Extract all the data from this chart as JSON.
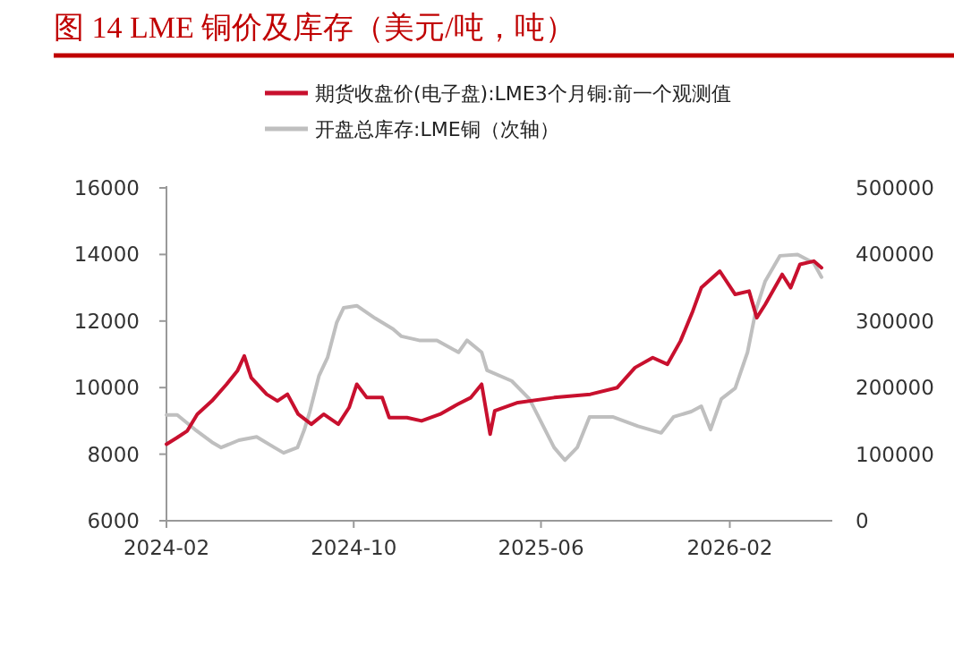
{
  "chart_data": {
    "type": "line",
    "title": "图 14  LME 铜价及库存（美元/吨，吨）",
    "legend": "top",
    "grid": false,
    "marker": "none",
    "line_style": "solid",
    "xlim": [
      "2024-02-01",
      "2026-06-14"
    ],
    "xticks": [
      "2024-02",
      "2024-10",
      "2025-06",
      "2026-02"
    ],
    "ylim": [
      6000,
      16000
    ],
    "yticks": [
      6000,
      8000,
      10000,
      12000,
      14000,
      16000
    ],
    "y2lim": [
      0,
      500000
    ],
    "y2ticks": [
      0,
      100000,
      200000,
      300000,
      400000,
      500000
    ],
    "series": [
      {
        "name": "期货收盘价(电子盘):LME3个月铜:前一个观测值",
        "color": "#c8102e",
        "x": [
          "2024-02-01",
          "2024-02-15",
          "2024-02-28",
          "2024-03-12",
          "2024-03-31",
          "2024-04-19",
          "2024-05-03",
          "2024-05-12",
          "2024-05-21",
          "2024-06-10",
          "2024-06-24",
          "2024-07-07",
          "2024-07-21",
          "2024-08-07",
          "2024-08-23",
          "2024-09-11",
          "2024-09-25",
          "2024-10-05",
          "2024-10-18",
          "2024-11-07",
          "2024-11-16",
          "2024-12-09",
          "2024-12-28",
          "2025-01-21",
          "2025-02-13",
          "2025-03-02",
          "2025-03-16",
          "2025-03-27",
          "2025-04-02",
          "2025-05-02",
          "2025-06-18",
          "2025-08-04",
          "2025-09-08",
          "2025-10-01",
          "2025-10-24",
          "2025-11-12",
          "2025-11-29",
          "2025-12-15",
          "2025-12-26",
          "2026-01-19",
          "2026-02-08",
          "2026-02-26",
          "2026-03-08",
          "2026-03-19",
          "2026-04-10",
          "2026-04-21",
          "2026-05-03",
          "2026-05-21",
          "2026-05-31"
        ],
        "values": [
          8300,
          8500,
          8700,
          9200,
          9600,
          10100,
          10500,
          10950,
          10300,
          9800,
          9600,
          9800,
          9200,
          8900,
          9200,
          8900,
          9400,
          10100,
          9700,
          9700,
          9100,
          9100,
          9000,
          9200,
          9500,
          9700,
          10100,
          8600,
          9300,
          9550,
          9700,
          9800,
          10000,
          10600,
          10900,
          10700,
          11400,
          12300,
          13000,
          13500,
          12800,
          12900,
          12100,
          12500,
          13400,
          13000,
          13700,
          13800,
          13600
        ]
      },
      {
        "name": "开盘总库存:LME铜（次轴）",
        "color": "#bfbfbf",
        "axis": "y2",
        "x": [
          "2024-02-01",
          "2024-02-15",
          "2024-03-09",
          "2024-03-31",
          "2024-04-12",
          "2024-05-05",
          "2024-05-28",
          "2024-06-20",
          "2024-07-02",
          "2024-07-20",
          "2024-07-29",
          "2024-08-05",
          "2024-08-17",
          "2024-08-28",
          "2024-09-09",
          "2024-09-18",
          "2024-10-05",
          "2024-10-29",
          "2024-11-21",
          "2024-12-02",
          "2024-12-25",
          "2025-01-17",
          "2025-02-14",
          "2025-02-25",
          "2025-03-16",
          "2025-03-23",
          "2025-04-24",
          "2025-05-17",
          "2025-06-18",
          "2025-07-02",
          "2025-07-18",
          "2025-08-03",
          "2025-09-02",
          "2025-10-05",
          "2025-11-04",
          "2025-11-20",
          "2025-12-13",
          "2025-12-26",
          "2026-01-07",
          "2026-01-21",
          "2026-02-08",
          "2026-02-24",
          "2026-03-07",
          "2026-03-19",
          "2026-04-07",
          "2026-04-30",
          "2026-05-21",
          "2026-05-31"
        ],
        "values": [
          159000,
          159000,
          137000,
          118000,
          110000,
          121000,
          126000,
          110000,
          102000,
          110000,
          137000,
          164000,
          218000,
          245000,
          298000,
          320000,
          323000,
          304000,
          288000,
          277000,
          271000,
          271000,
          253000,
          271000,
          253000,
          226000,
          210000,
          183000,
          110000,
          91000,
          110000,
          156000,
          156000,
          142000,
          132000,
          156000,
          164000,
          172000,
          137000,
          183000,
          199000,
          253000,
          317000,
          360000,
          398000,
          400000,
          387000,
          366000
        ]
      }
    ]
  }
}
